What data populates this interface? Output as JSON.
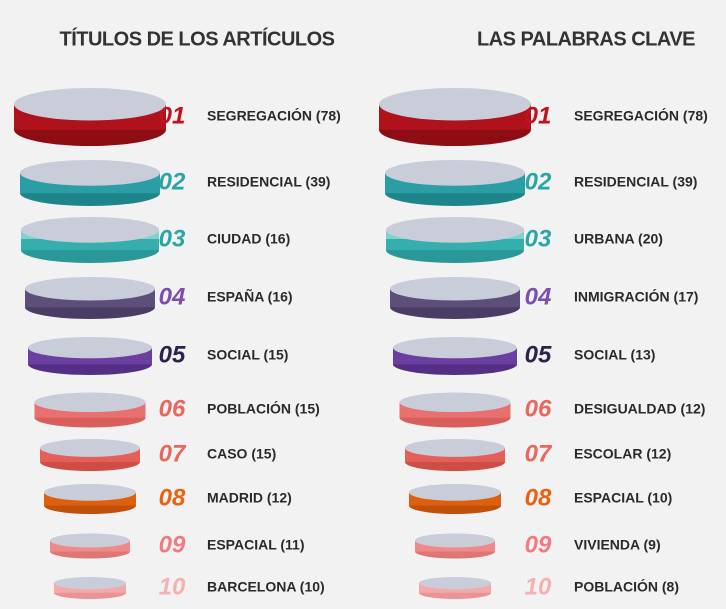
{
  "columns": [
    {
      "title": "TÍTULOS DE LOS ARTÍCULOS",
      "items": [
        {
          "rank": "01",
          "label": "SEGREGACIÓN (78)"
        },
        {
          "rank": "02",
          "label": "RESIDENCIAL (39)"
        },
        {
          "rank": "03",
          "label": "CIUDAD (16)"
        },
        {
          "rank": "04",
          "label": "ESPAÑA (16)"
        },
        {
          "rank": "05",
          "label": "SOCIAL (15)"
        },
        {
          "rank": "06",
          "label": "POBLACIÓN (15)"
        },
        {
          "rank": "07",
          "label": "CASO (15)"
        },
        {
          "rank": "08",
          "label": "MADRID (12)"
        },
        {
          "rank": "09",
          "label": "ESPACIAL (11)"
        },
        {
          "rank": "10",
          "label": "BARCELONA (10)"
        }
      ]
    },
    {
      "title": "LAS PALABRAS CLAVE",
      "items": [
        {
          "rank": "01",
          "label": "SEGREGACIÓN (78)"
        },
        {
          "rank": "02",
          "label": "RESIDENCIAL (39)"
        },
        {
          "rank": "03",
          "label": "URBANA (20)"
        },
        {
          "rank": "04",
          "label": "INMIGRACIÓN (17)"
        },
        {
          "rank": "05",
          "label": "SOCIAL (13)"
        },
        {
          "rank": "06",
          "label": "DESIGUALDAD (12)"
        },
        {
          "rank": "07",
          "label": "ESCOLAR (12)"
        },
        {
          "rank": "08",
          "label": "ESPACIAL (10)"
        },
        {
          "rank": "09",
          "label": "VIVIENDA (9)"
        },
        {
          "rank": "10",
          "label": "POBLACIÓN (8)"
        }
      ]
    }
  ]
}
